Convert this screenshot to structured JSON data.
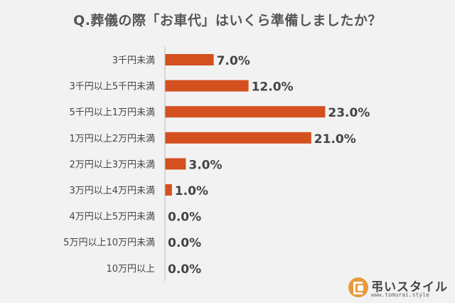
{
  "title": "Q.葬儀の際「お車代」はいくら準備しましたか？",
  "logo": {
    "name": "弔いスタイル",
    "url": "www.tomurai.style"
  },
  "colors": {
    "bar": "#d4501f",
    "background": "#f2f2f2",
    "axis": "#bbbbbb",
    "text": "#444444",
    "logo": "#e89b3c"
  },
  "chart_data": {
    "type": "bar",
    "orientation": "horizontal",
    "title": "Q.葬儀の際「お車代」はいくら準備しましたか？",
    "categories": [
      "3千円未満",
      "3千円以上5千円未満",
      "5千円以上1万円未満",
      "1万円以上2万円未満",
      "2万円以上3万円未満",
      "3万円以上4万円未満",
      "4万円以上5万円未満",
      "5万円以上10万円未満",
      "10万円以上"
    ],
    "values": [
      7.0,
      12.0,
      23.0,
      21.0,
      3.0,
      1.0,
      0.0,
      0.0,
      0.0
    ],
    "value_labels": [
      "7.0%",
      "12.0%",
      "23.0%",
      "21.0%",
      "3.0%",
      "1.0%",
      "0.0%",
      "0.0%",
      "0.0%"
    ],
    "xlim": [
      0,
      25
    ],
    "grid": false,
    "legend": "none"
  }
}
